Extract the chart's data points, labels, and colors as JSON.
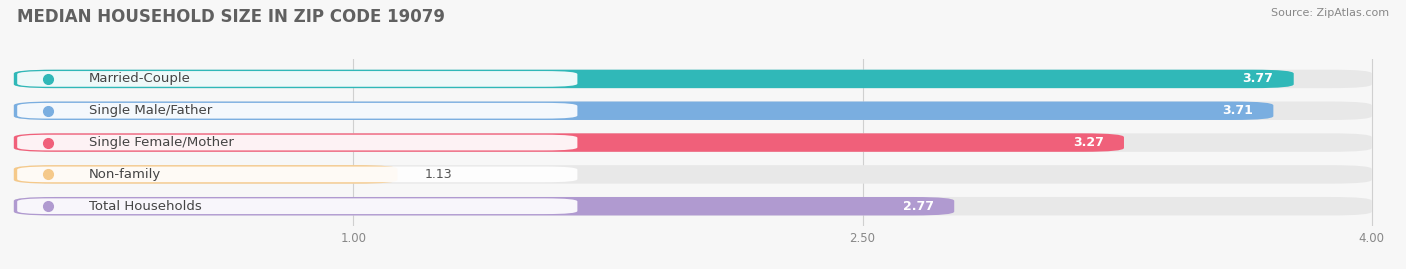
{
  "title": "MEDIAN HOUSEHOLD SIZE IN ZIP CODE 19079",
  "source": "Source: ZipAtlas.com",
  "categories": [
    "Married-Couple",
    "Single Male/Father",
    "Single Female/Mother",
    "Non-family",
    "Total Households"
  ],
  "values": [
    3.77,
    3.71,
    3.27,
    1.13,
    2.77
  ],
  "bar_colors": [
    "#30b8b8",
    "#7aaee0",
    "#f0607a",
    "#f5c98a",
    "#b09ad0"
  ],
  "label_dot_colors": [
    "#30b8b8",
    "#7aaee0",
    "#f0607a",
    "#f5c98a",
    "#b09ad0"
  ],
  "xlim_data": [
    0,
    4.3
  ],
  "xmin": 0,
  "xmax": 4.0,
  "xticks": [
    1.0,
    2.5,
    4.0
  ],
  "label_fontsize": 9.5,
  "value_fontsize": 9,
  "title_fontsize": 12,
  "background_color": "#f7f7f7",
  "bar_bg_color": "#e8e8e8",
  "bar_height": 0.58,
  "bar_gap": 0.42
}
